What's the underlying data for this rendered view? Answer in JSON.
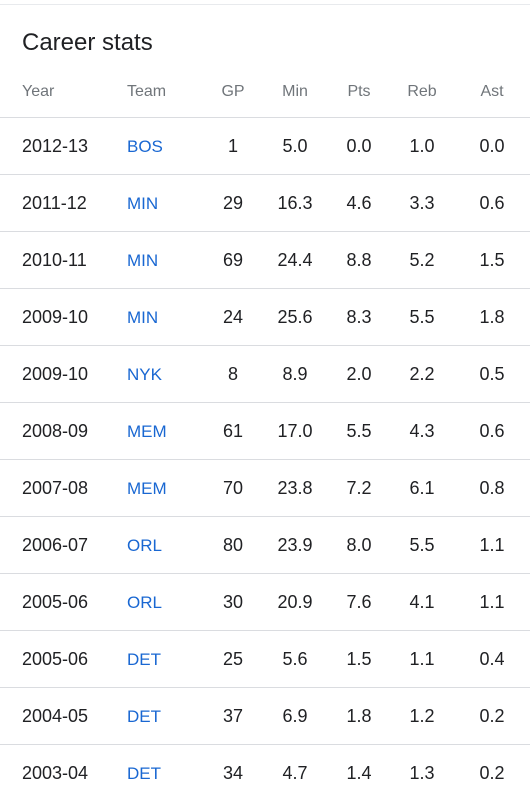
{
  "title": "Career stats",
  "columns": {
    "year": "Year",
    "team": "Team",
    "gp": "GP",
    "min": "Min",
    "pts": "Pts",
    "reb": "Reb",
    "ast": "Ast"
  },
  "rows": [
    {
      "year": "2012-13",
      "team": "BOS",
      "gp": "1",
      "min": "5.0",
      "pts": "0.0",
      "reb": "1.0",
      "ast": "0.0"
    },
    {
      "year": "2011-12",
      "team": "MIN",
      "gp": "29",
      "min": "16.3",
      "pts": "4.6",
      "reb": "3.3",
      "ast": "0.6"
    },
    {
      "year": "2010-11",
      "team": "MIN",
      "gp": "69",
      "min": "24.4",
      "pts": "8.8",
      "reb": "5.2",
      "ast": "1.5"
    },
    {
      "year": "2009-10",
      "team": "MIN",
      "gp": "24",
      "min": "25.6",
      "pts": "8.3",
      "reb": "5.5",
      "ast": "1.8"
    },
    {
      "year": "2009-10",
      "team": "NYK",
      "gp": "8",
      "min": "8.9",
      "pts": "2.0",
      "reb": "2.2",
      "ast": "0.5"
    },
    {
      "year": "2008-09",
      "team": "MEM",
      "gp": "61",
      "min": "17.0",
      "pts": "5.5",
      "reb": "4.3",
      "ast": "0.6"
    },
    {
      "year": "2007-08",
      "team": "MEM",
      "gp": "70",
      "min": "23.8",
      "pts": "7.2",
      "reb": "6.1",
      "ast": "0.8"
    },
    {
      "year": "2006-07",
      "team": "ORL",
      "gp": "80",
      "min": "23.9",
      "pts": "8.0",
      "reb": "5.5",
      "ast": "1.1"
    },
    {
      "year": "2005-06",
      "team": "ORL",
      "gp": "30",
      "min": "20.9",
      "pts": "7.6",
      "reb": "4.1",
      "ast": "1.1"
    },
    {
      "year": "2005-06",
      "team": "DET",
      "gp": "25",
      "min": "5.6",
      "pts": "1.5",
      "reb": "1.1",
      "ast": "0.4"
    },
    {
      "year": "2004-05",
      "team": "DET",
      "gp": "37",
      "min": "6.9",
      "pts": "1.8",
      "reb": "1.2",
      "ast": "0.2"
    },
    {
      "year": "2003-04",
      "team": "DET",
      "gp": "34",
      "min": "4.7",
      "pts": "1.4",
      "reb": "1.3",
      "ast": "0.2"
    }
  ],
  "colors": {
    "team_link": "#1967d2",
    "header_text": "#70757a",
    "body_text": "#202124",
    "divider": "#dadce0"
  }
}
